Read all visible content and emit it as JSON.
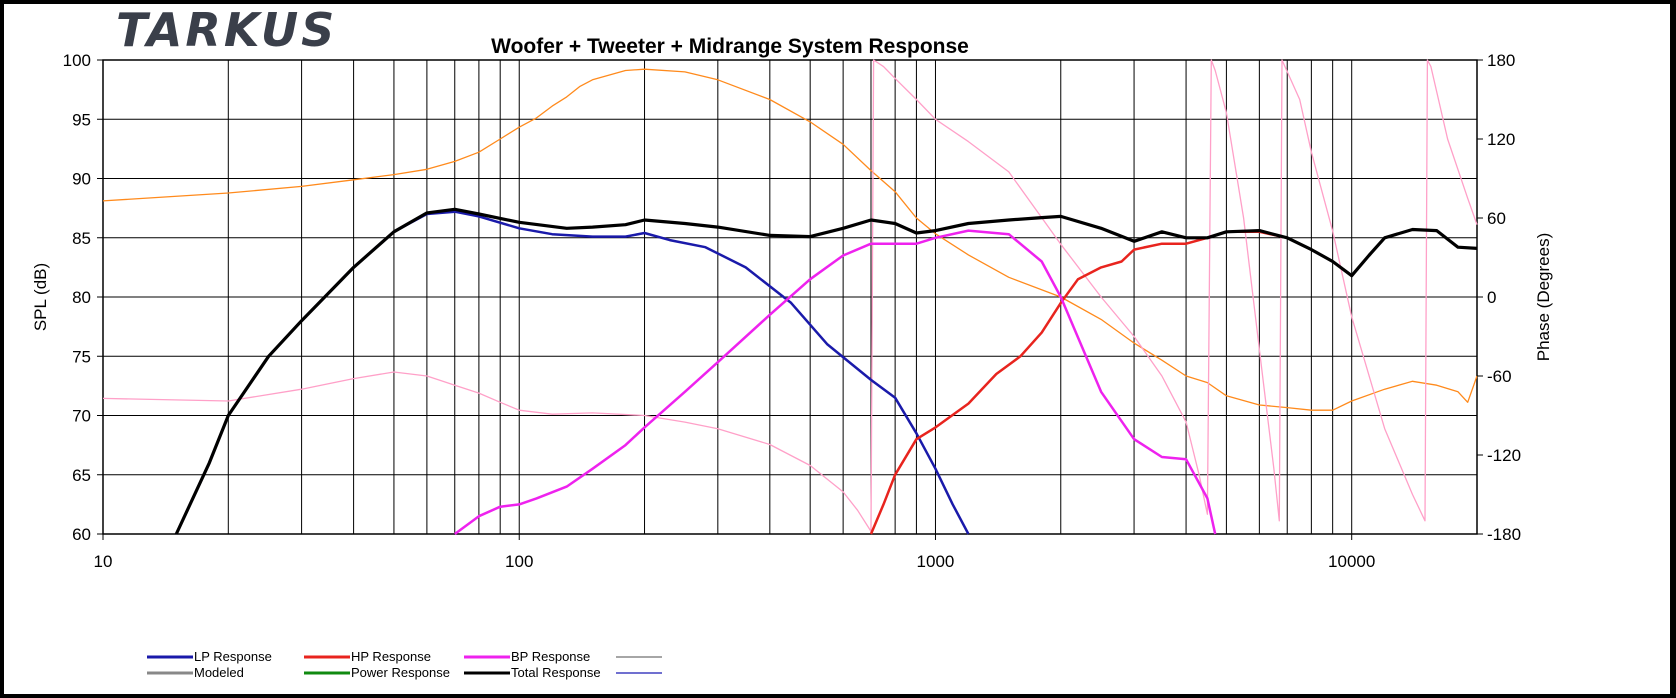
{
  "logo": "TARKUS",
  "chart_data": {
    "type": "line",
    "title": "Woofer + Tweeter + Midrange  System Response",
    "xscale": "log",
    "xlim": [
      10,
      20000
    ],
    "xticks": [
      10,
      100,
      1000,
      10000
    ],
    "xticklabels": [
      "10",
      "100",
      "1000",
      "10000"
    ],
    "ylabel": "SPL (dB)",
    "ylim": [
      60,
      100
    ],
    "yticks": [
      60,
      65,
      70,
      75,
      80,
      85,
      90,
      95,
      100
    ],
    "yticklabels": [
      "60",
      "65",
      "70",
      "75",
      "80",
      "85",
      "90",
      "95",
      "100"
    ],
    "y2label": "Phase (Degrees)",
    "y2lim": [
      -180,
      180
    ],
    "y2ticks": [
      -180,
      -120,
      -60,
      0,
      60,
      120,
      180
    ],
    "y2ticklabels": [
      "-180",
      "-120",
      "-60",
      "0",
      "60",
      "120",
      "180"
    ],
    "grid": true,
    "legend_position": "bottom-left",
    "legend": [
      {
        "name": "LP Response",
        "color": "#1a1aaa"
      },
      {
        "name": "HP Response",
        "color": "#e8241e"
      },
      {
        "name": "BP Response",
        "color": "#ee22ee"
      },
      {
        "name": "",
        "color": "#888888"
      },
      {
        "name": "Modeled",
        "color": "#888888"
      },
      {
        "name": "Power Response",
        "color": "#108a10"
      },
      {
        "name": "Total Response",
        "color": "#000000"
      },
      {
        "name": "",
        "color": "#4040c0"
      }
    ],
    "series": [
      {
        "name": "LP Response",
        "axis": "spl",
        "color": "#1a1aaa",
        "x": [
          15,
          18,
          20,
          25,
          30,
          40,
          50,
          60,
          70,
          80,
          100,
          120,
          150,
          180,
          200,
          230,
          280,
          350,
          450,
          550,
          700,
          800,
          900,
          1000,
          1100,
          1200
        ],
        "y": [
          60,
          66,
          70,
          75,
          78,
          82.5,
          85.5,
          87,
          87.2,
          86.8,
          85.8,
          85.3,
          85.1,
          85.1,
          85.4,
          84.8,
          84.2,
          82.5,
          79.5,
          76.0,
          73.0,
          71.5,
          68.5,
          65.5,
          62.5,
          60
        ]
      },
      {
        "name": "HP Response",
        "axis": "spl",
        "color": "#e8241e",
        "x": [
          700,
          750,
          800,
          900,
          1000,
          1200,
          1400,
          1600,
          1800,
          2000,
          2200,
          2500,
          2800,
          3000,
          3500,
          4000,
          4500,
          5000,
          6000,
          7000,
          8000,
          9000
        ],
        "y": [
          60,
          62.5,
          65,
          68,
          69,
          71,
          73.5,
          75,
          77,
          79.5,
          81.5,
          82.5,
          83,
          84,
          84.5,
          84.5,
          85,
          85.5,
          85.5,
          85,
          84,
          83
        ]
      },
      {
        "name": "BP Response",
        "axis": "spl",
        "color": "#ee22ee",
        "x": [
          70,
          80,
          90,
          100,
          110,
          130,
          150,
          180,
          200,
          250,
          300,
          400,
          500,
          600,
          700,
          900,
          1000,
          1200,
          1500,
          1800,
          2000,
          2500,
          3000,
          3500,
          4000,
          4500,
          4700
        ],
        "y": [
          60,
          61.5,
          62.3,
          62.5,
          63,
          64,
          65.5,
          67.5,
          69,
          72,
          74.5,
          78.5,
          81.5,
          83.5,
          84.5,
          84.5,
          85.0,
          85.6,
          85.3,
          83,
          80,
          72,
          68,
          66.5,
          66.3,
          63,
          60
        ]
      },
      {
        "name": "Total Response",
        "axis": "spl",
        "color": "#000000",
        "x": [
          15,
          18,
          20,
          25,
          30,
          40,
          50,
          60,
          70,
          80,
          100,
          130,
          150,
          180,
          200,
          250,
          300,
          400,
          500,
          600,
          700,
          800,
          900,
          1000,
          1200,
          1500,
          1800,
          2000,
          2500,
          3000,
          3500,
          4000,
          4500,
          5000,
          6000,
          7000,
          8000,
          9000,
          10000,
          11000,
          12000,
          14000,
          16000,
          18000,
          20000
        ],
        "y": [
          60,
          66,
          70,
          75,
          78,
          82.5,
          85.5,
          87.1,
          87.4,
          87.0,
          86.3,
          85.8,
          85.9,
          86.1,
          86.5,
          86.2,
          85.9,
          85.2,
          85.1,
          85.8,
          86.5,
          86.2,
          85.4,
          85.6,
          86.2,
          86.5,
          86.7,
          86.8,
          85.8,
          84.7,
          85.5,
          85.0,
          85.0,
          85.5,
          85.6,
          85.0,
          84.0,
          83.0,
          81.8,
          83.5,
          85.0,
          85.7,
          85.6,
          84.2,
          84.1
        ]
      },
      {
        "name": "",
        "axis": "phase",
        "color": "#ff8a1c",
        "x": [
          10,
          20,
          30,
          40,
          50,
          60,
          70,
          80,
          90,
          100,
          110,
          120,
          130,
          140,
          150,
          180,
          200,
          250,
          300,
          400,
          500,
          600,
          700,
          800,
          900,
          1000,
          1200,
          1500,
          2000,
          2500,
          3000,
          3500,
          4000,
          4500,
          5000,
          6000,
          7000,
          8000,
          9000,
          10000,
          12000,
          14000,
          16000,
          18000,
          19000,
          20000
        ],
        "y": [
          73,
          79,
          84,
          89,
          93,
          97,
          103,
          110,
          120,
          129,
          136,
          145,
          152,
          160,
          165,
          172,
          173,
          171,
          165,
          150,
          133,
          116,
          96,
          80,
          60,
          48,
          32,
          15,
          0,
          -17,
          -35,
          -48,
          -60,
          -65,
          -75,
          -82,
          -84,
          -86,
          -86,
          -79,
          -70,
          -64,
          -67,
          -72,
          -80,
          -60
        ]
      },
      {
        "name": "",
        "axis": "phase",
        "color": "#ffa0c8",
        "x": [
          10,
          20,
          30,
          40,
          50,
          60,
          70,
          80,
          90,
          100,
          120,
          150,
          200,
          250,
          300,
          400,
          500,
          600,
          650,
          700,
          710,
          750,
          800,
          900,
          1000,
          1200,
          1500,
          2000,
          2500,
          3000,
          3500,
          4000,
          4300,
          4500,
          4600,
          4700,
          5000,
          5500,
          6000,
          6500,
          6700,
          6800,
          7500,
          8000,
          9000,
          10000,
          12000,
          14000,
          15000,
          15200,
          15500,
          17000,
          19000,
          20000
        ],
        "y": [
          -77,
          -79,
          -70,
          -62,
          -57,
          -60,
          -67,
          -73,
          -80,
          -86,
          -89,
          -88,
          -90,
          -95,
          -100,
          -112,
          -128,
          -148,
          -162,
          -178,
          180,
          175,
          166,
          150,
          135,
          118,
          95,
          40,
          0,
          -30,
          -60,
          -95,
          -135,
          -165,
          180,
          172,
          140,
          60,
          -40,
          -130,
          -170,
          180,
          150,
          110,
          50,
          -15,
          -100,
          -150,
          -170,
          180,
          175,
          120,
          75,
          55
        ]
      }
    ]
  }
}
